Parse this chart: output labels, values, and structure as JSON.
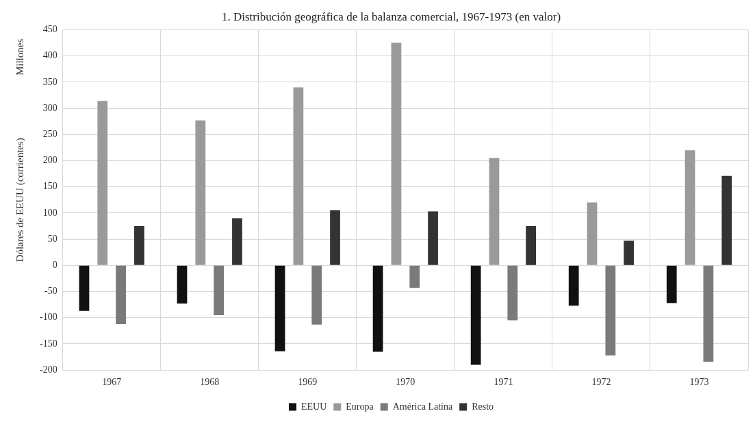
{
  "chart_data": {
    "type": "bar",
    "title": "1. Distribución geográfica de la balanza comercial, 1967-1973 (en valor)",
    "ylabel": "Dólares de EEUU (corrientes)",
    "annotations": [
      "Millones"
    ],
    "categories": [
      "1967",
      "1968",
      "1969",
      "1970",
      "1971",
      "1972",
      "1973"
    ],
    "series": [
      {
        "name": "EEUU",
        "color": "#111111",
        "values": [
          -87,
          -73,
          -164,
          -165,
          -190,
          -77,
          -72
        ]
      },
      {
        "name": "Europa",
        "color": "#9a9a9a",
        "values": [
          314,
          277,
          340,
          425,
          205,
          120,
          220
        ]
      },
      {
        "name": "América Latina",
        "color": "#7a7a7a",
        "values": [
          -112,
          -95,
          -113,
          -43,
          -105,
          -172,
          -184
        ]
      },
      {
        "name": "Resto",
        "color": "#333333",
        "values": [
          75,
          90,
          105,
          103,
          75,
          47,
          171
        ]
      }
    ],
    "ylim": [
      -200,
      450
    ],
    "yticks": [
      -200,
      -150,
      -100,
      -50,
      0,
      50,
      100,
      150,
      200,
      250,
      300,
      350,
      400,
      450
    ],
    "grid": true,
    "legend": "bottom"
  }
}
